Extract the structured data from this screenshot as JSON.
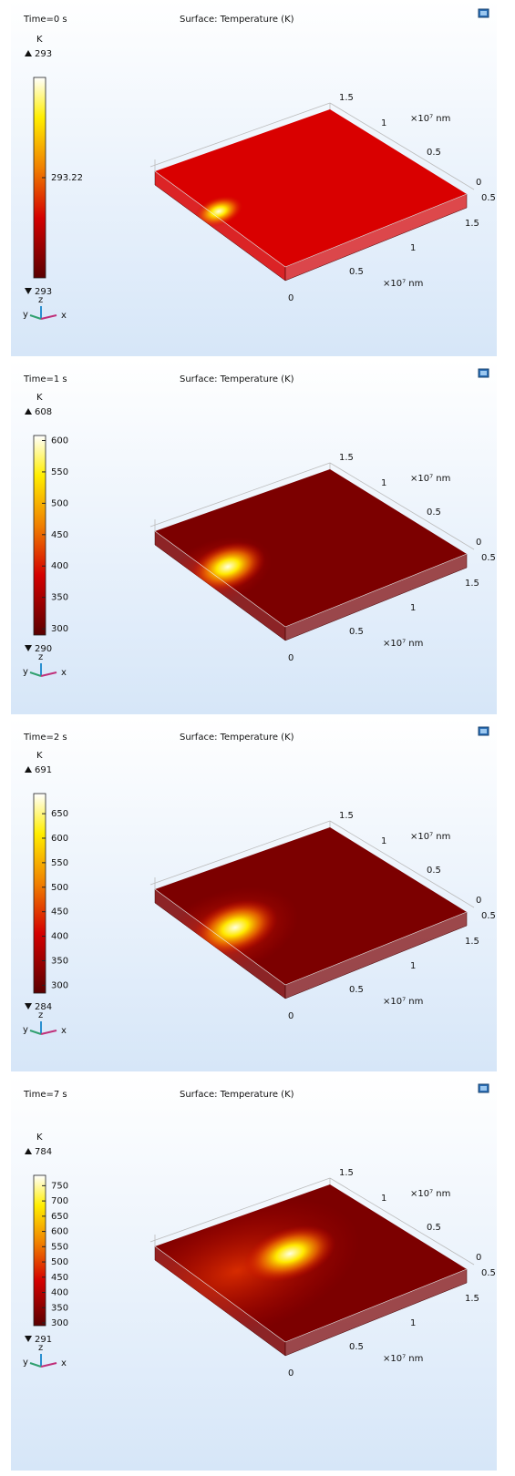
{
  "axes": {
    "back_ticks": [
      "1.5",
      "1",
      "0.5",
      "0",
      "0.5"
    ],
    "front_ticks": [
      "1.5",
      "1",
      "0.5",
      "0"
    ],
    "unit": "×10⁷ nm"
  },
  "triad": {
    "z": "z",
    "y": "y",
    "x": "x"
  },
  "panels": [
    {
      "time": "Time=0 s",
      "title": "Surface: Temperature (K)",
      "unit": "K",
      "max": 293,
      "min": 293,
      "ticks": [
        293.22
      ],
      "surface_color": "#d90000"
    },
    {
      "time": "Time=1 s",
      "title": "Surface: Temperature (K)",
      "unit": "K",
      "max": 608,
      "min": 290,
      "ticks": [
        600,
        550,
        500,
        450,
        400,
        350,
        300
      ],
      "surface_color": "#7c0000"
    },
    {
      "time": "Time=2 s",
      "title": "Surface: Temperature (K)",
      "unit": "K",
      "max": 691,
      "min": 284,
      "ticks": [
        650,
        600,
        550,
        500,
        450,
        400,
        350,
        300
      ],
      "surface_color": "#7c0000"
    },
    {
      "time": "Time=7 s",
      "title": "Surface: Temperature (K)",
      "unit": "K",
      "max": 784,
      "min": 291,
      "ticks": [
        750,
        700,
        650,
        600,
        550,
        500,
        450,
        400,
        350,
        300
      ],
      "surface_color": "#7c0000"
    }
  ]
}
